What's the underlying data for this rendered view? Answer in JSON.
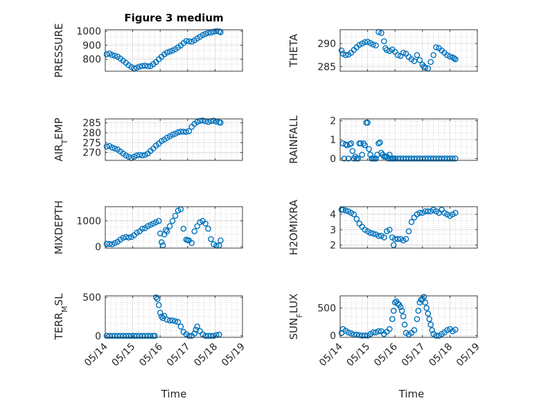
{
  "figure": {
    "title": "Figure 3 medium",
    "xlabel": "Time"
  },
  "style": {
    "marker_color": "#0072BD",
    "axis_color": "#262626",
    "grid_color": "#b0b0b0"
  },
  "chart_data": [
    {
      "type": "scatter",
      "ylabel": "PRESSURE",
      "ylim": [
        715,
        1010
      ],
      "yticks": [
        800,
        900,
        1000
      ],
      "xticks": [
        "05/14",
        "05/15",
        "05/16",
        "05/17",
        "05/18",
        "05/19"
      ],
      "xlim": [
        0,
        5
      ],
      "grid": true,
      "x": [
        0.05,
        0.15,
        0.25,
        0.35,
        0.45,
        0.55,
        0.65,
        0.75,
        0.85,
        0.95,
        1.05,
        1.15,
        1.25,
        1.35,
        1.45,
        1.55,
        1.65,
        1.75,
        1.85,
        1.95,
        2.05,
        2.15,
        2.25,
        2.35,
        2.45,
        2.55,
        2.65,
        2.75,
        2.85,
        2.95,
        3.05,
        3.15,
        3.25,
        3.35,
        3.45,
        3.55,
        3.65,
        3.75,
        3.85,
        3.95,
        4.05,
        4.15,
        4.2
      ],
      "y": [
        835,
        840,
        830,
        825,
        818,
        805,
        790,
        775,
        758,
        745,
        735,
        740,
        748,
        752,
        755,
        750,
        752,
        765,
        780,
        800,
        818,
        835,
        848,
        855,
        862,
        872,
        885,
        898,
        915,
        930,
        928,
        925,
        935,
        948,
        960,
        972,
        980,
        988,
        990,
        996,
        1000,
        998,
        992
      ]
    },
    {
      "type": "scatter",
      "ylabel": "THETA",
      "ylim": [
        284,
        293
      ],
      "yticks": [
        285,
        290
      ],
      "xticks": [
        "05/14",
        "05/15",
        "05/16",
        "05/17",
        "05/18",
        "05/19"
      ],
      "xlim": [
        0,
        5
      ],
      "grid": true,
      "x": [
        0.05,
        0.1,
        0.2,
        0.3,
        0.4,
        0.5,
        0.6,
        0.7,
        0.8,
        0.9,
        1.0,
        1.1,
        1.2,
        1.3,
        1.4,
        1.5,
        1.6,
        1.65,
        1.7,
        1.8,
        1.9,
        2.0,
        2.1,
        2.2,
        2.3,
        2.4,
        2.5,
        2.6,
        2.7,
        2.8,
        2.9,
        3.0,
        3.05,
        3.1,
        3.2,
        3.3,
        3.4,
        3.5,
        3.6,
        3.7,
        3.8,
        3.9,
        4.0,
        4.1,
        4.15,
        4.2
      ],
      "y": [
        288.5,
        287.8,
        287.5,
        287.6,
        288,
        288.6,
        289.2,
        289.7,
        290,
        290.3,
        290.4,
        290.1,
        289.8,
        289.6,
        292.5,
        292.3,
        290.5,
        289,
        288.6,
        288.4,
        288.7,
        288.2,
        287.5,
        287.3,
        288,
        287.8,
        287.1,
        286.6,
        286.2,
        287.5,
        286.4,
        285.4,
        285,
        284.8,
        284.6,
        286,
        287.5,
        289.2,
        289,
        288.5,
        288,
        287.5,
        287.2,
        287,
        286.8,
        286.6
      ]
    },
    {
      "type": "scatter",
      "ylabel": "AIR_TEMP",
      "ylim": [
        266,
        287
      ],
      "yticks": [
        270,
        275,
        280,
        285
      ],
      "xticks": [
        "05/14",
        "05/15",
        "05/16",
        "05/17",
        "05/18",
        "05/19"
      ],
      "xlim": [
        0,
        5
      ],
      "grid": true,
      "x": [
        0.05,
        0.15,
        0.25,
        0.35,
        0.45,
        0.55,
        0.65,
        0.75,
        0.85,
        0.95,
        1.05,
        1.15,
        1.25,
        1.35,
        1.45,
        1.55,
        1.65,
        1.75,
        1.85,
        1.95,
        2.05,
        2.15,
        2.25,
        2.35,
        2.45,
        2.55,
        2.65,
        2.75,
        2.85,
        2.95,
        3.05,
        3.15,
        3.25,
        3.35,
        3.45,
        3.55,
        3.65,
        3.75,
        3.85,
        3.95,
        4.05,
        4.15,
        4.2
      ],
      "y": [
        273,
        273.3,
        272.5,
        272,
        271.5,
        270.5,
        269.5,
        268.5,
        267.8,
        267.2,
        267.8,
        268.5,
        268.8,
        268.5,
        268.8,
        269.5,
        270.8,
        272,
        273.5,
        274.5,
        275.8,
        276.5,
        277.5,
        278.2,
        279,
        279.5,
        280.2,
        280.6,
        280.5,
        280.4,
        280.8,
        283,
        284.5,
        285.5,
        286,
        286.2,
        285.8,
        285.5,
        285.9,
        286.1,
        285.6,
        285.3,
        285.1
      ]
    },
    {
      "type": "scatter",
      "ylabel": "RAINFALL",
      "ylim": [
        -0.1,
        2.1
      ],
      "yticks": [
        0,
        1,
        2
      ],
      "xticks": [
        "05/14",
        "05/15",
        "05/16",
        "05/17",
        "05/18",
        "05/19"
      ],
      "xlim": [
        0,
        5
      ],
      "grid": true,
      "x": [
        0.1,
        0.15,
        0.2,
        0.25,
        0.3,
        0.35,
        0.4,
        0.45,
        0.5,
        0.55,
        0.6,
        0.65,
        0.7,
        0.75,
        0.8,
        0.85,
        0.9,
        0.95,
        1.0,
        1.05,
        1.1,
        1.15,
        1.2,
        1.25,
        1.3,
        1.35,
        1.4,
        1.45,
        1.5,
        1.55,
        1.6,
        1.65,
        1.7,
        1.75,
        1.8,
        1.85,
        1.9,
        1.95,
        2.0,
        2.1,
        2.2,
        2.3,
        2.4,
        2.5,
        2.6,
        2.7,
        2.8,
        2.9,
        3.0,
        3.1,
        3.2,
        3.3,
        3.4,
        3.5,
        3.6,
        3.7,
        3.8,
        3.9,
        4.0,
        4.1,
        4.2
      ],
      "y": [
        0.8,
        0,
        0.75,
        0.7,
        0,
        0.75,
        0.8,
        0.4,
        0,
        0.1,
        0,
        0,
        0.8,
        0.8,
        0.2,
        0.8,
        0.7,
        1.9,
        1.9,
        0.5,
        0.2,
        0,
        0,
        0,
        0,
        0.2,
        0.8,
        0.85,
        0.3,
        0.2,
        0.1,
        0.1,
        0.1,
        0,
        0.2,
        0,
        0,
        0,
        0,
        0,
        0,
        0,
        0,
        0,
        0,
        0,
        0,
        0,
        0,
        0,
        0,
        0,
        0,
        0,
        0,
        0,
        0,
        0,
        0,
        0,
        0
      ]
    },
    {
      "type": "scatter",
      "ylabel": "MIXDEPTH",
      "ylim": [
        -50,
        1550
      ],
      "yticks": [
        0,
        1000
      ],
      "xticks": [
        "05/14",
        "05/15",
        "05/16",
        "05/17",
        "05/18",
        "05/19"
      ],
      "xlim": [
        0,
        5
      ],
      "grid": true,
      "x": [
        0.05,
        0.15,
        0.25,
        0.35,
        0.45,
        0.55,
        0.65,
        0.75,
        0.85,
        0.95,
        1.05,
        1.15,
        1.25,
        1.35,
        1.45,
        1.55,
        1.65,
        1.75,
        1.85,
        1.95,
        2.0,
        2.05,
        2.1,
        2.15,
        2.2,
        2.25,
        2.35,
        2.45,
        2.55,
        2.65,
        2.75,
        2.85,
        2.95,
        3.0,
        3.05,
        3.15,
        3.25,
        3.35,
        3.45,
        3.55,
        3.65,
        3.75,
        3.85,
        3.95,
        4.05,
        4.15,
        4.2
      ],
      "y": [
        120,
        110,
        100,
        150,
        200,
        280,
        350,
        380,
        360,
        380,
        450,
        550,
        600,
        700,
        720,
        800,
        850,
        900,
        950,
        1000,
        520,
        180,
        60,
        480,
        650,
        600,
        800,
        1000,
        1200,
        1400,
        1450,
        700,
        280,
        260,
        250,
        150,
        600,
        800,
        950,
        1000,
        900,
        700,
        300,
        100,
        50,
        50,
        250
      ]
    },
    {
      "type": "scatter",
      "ylabel": "H2OMIXRA",
      "ylim": [
        1.8,
        4.5
      ],
      "yticks": [
        2,
        3,
        4
      ],
      "xticks": [
        "05/14",
        "05/15",
        "05/16",
        "05/17",
        "05/18",
        "05/19"
      ],
      "xlim": [
        0,
        5
      ],
      "grid": true,
      "x": [
        0.05,
        0.1,
        0.2,
        0.3,
        0.4,
        0.5,
        0.6,
        0.7,
        0.8,
        0.9,
        1.0,
        1.1,
        1.2,
        1.3,
        1.4,
        1.5,
        1.6,
        1.7,
        1.8,
        1.9,
        1.95,
        2.0,
        2.1,
        2.2,
        2.3,
        2.4,
        2.5,
        2.6,
        2.7,
        2.8,
        2.9,
        3.0,
        3.1,
        3.2,
        3.3,
        3.4,
        3.5,
        3.6,
        3.7,
        3.8,
        3.9,
        4.0,
        4.1,
        4.2
      ],
      "y": [
        4.3,
        4.3,
        4.25,
        4.2,
        4.1,
        4.0,
        3.7,
        3.4,
        3.2,
        3.0,
        2.9,
        2.8,
        2.75,
        2.7,
        2.6,
        2.6,
        2.5,
        2.9,
        3.0,
        2.5,
        2.0,
        2.4,
        2.4,
        2.4,
        2.3,
        2.4,
        2.9,
        3.5,
        3.8,
        4.0,
        4.1,
        4.1,
        4.2,
        4.2,
        4.2,
        4.3,
        4.2,
        4.1,
        4.3,
        4.1,
        4.0,
        3.9,
        4.0,
        4.1
      ]
    },
    {
      "type": "scatter",
      "ylabel": "TERR_MSL",
      "ylim": [
        -20,
        520
      ],
      "yticks": [
        0,
        500
      ],
      "xticks": [
        "05/14",
        "05/15",
        "05/16",
        "05/17",
        "05/18",
        "05/19"
      ],
      "xlim": [
        0,
        5
      ],
      "grid": true,
      "x": [
        0.05,
        0.15,
        0.25,
        0.35,
        0.45,
        0.55,
        0.65,
        0.75,
        0.85,
        0.95,
        1.05,
        1.15,
        1.25,
        1.35,
        1.45,
        1.55,
        1.65,
        1.75,
        1.8,
        1.85,
        1.9,
        1.95,
        2.0,
        2.05,
        2.1,
        2.15,
        2.25,
        2.35,
        2.45,
        2.55,
        2.65,
        2.75,
        2.85,
        2.95,
        3.05,
        3.15,
        3.25,
        3.3,
        3.35,
        3.45,
        3.55,
        3.65,
        3.75,
        3.85,
        3.95,
        4.05,
        4.15
      ],
      "y": [
        0,
        0,
        0,
        0,
        0,
        0,
        0,
        0,
        0,
        0,
        0,
        0,
        0,
        0,
        0,
        0,
        0,
        0,
        0,
        500,
        480,
        400,
        300,
        250,
        230,
        260,
        210,
        200,
        200,
        190,
        180,
        120,
        50,
        20,
        0,
        0,
        30,
        80,
        120,
        60,
        20,
        0,
        0,
        0,
        0,
        10,
        15
      ]
    },
    {
      "type": "scatter",
      "ylabel": "SUN_FLUX",
      "ylim": [
        -30,
        720
      ],
      "yticks": [
        0,
        500
      ],
      "xticks": [
        "05/14",
        "05/15",
        "05/16",
        "05/17",
        "05/18",
        "05/19"
      ],
      "xlim": [
        0,
        5
      ],
      "grid": true,
      "x": [
        0.05,
        0.1,
        0.2,
        0.3,
        0.4,
        0.5,
        0.6,
        0.7,
        0.8,
        0.9,
        1.0,
        1.1,
        1.2,
        1.3,
        1.4,
        1.5,
        1.6,
        1.7,
        1.8,
        1.9,
        1.95,
        2.0,
        2.05,
        2.1,
        2.15,
        2.2,
        2.25,
        2.3,
        2.35,
        2.4,
        2.5,
        2.6,
        2.7,
        2.8,
        2.85,
        2.9,
        2.95,
        3.0,
        3.05,
        3.1,
        3.15,
        3.2,
        3.25,
        3.3,
        3.35,
        3.4,
        3.5,
        3.6,
        3.7,
        3.8,
        3.9,
        4.0,
        4.1,
        4.2
      ],
      "y": [
        50,
        120,
        90,
        60,
        40,
        20,
        20,
        10,
        0,
        5,
        0,
        30,
        60,
        60,
        80,
        80,
        30,
        70,
        120,
        300,
        450,
        600,
        620,
        580,
        560,
        520,
        450,
        350,
        200,
        50,
        20,
        50,
        100,
        300,
        450,
        600,
        650,
        660,
        700,
        600,
        500,
        400,
        300,
        200,
        100,
        30,
        0,
        0,
        30,
        60,
        100,
        120,
        80,
        110
      ]
    }
  ]
}
